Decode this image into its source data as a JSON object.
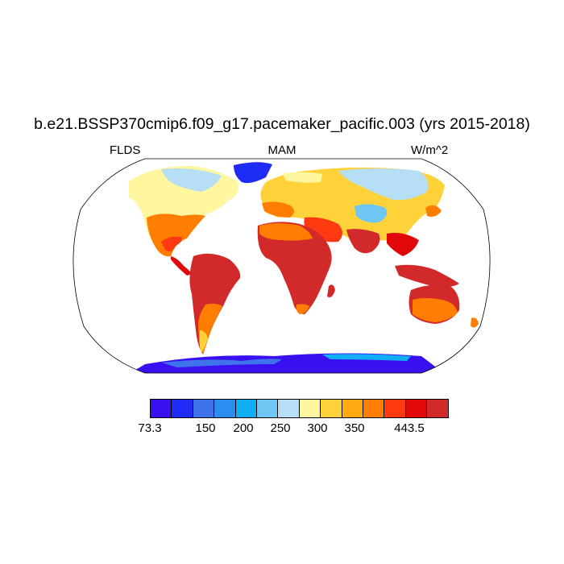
{
  "title": "b.e21.BSSP370cmip6.f09_g17.pacemaker_pacific.003 (yrs 2015-2018)",
  "left_label": "FLDS",
  "center_label": "MAM",
  "right_label": "W/m^2",
  "colorbar": {
    "colors": [
      "#3a10f0",
      "#1e2cf5",
      "#3e73ec",
      "#2d8cf0",
      "#12aef5",
      "#6fc6f2",
      "#b6def4",
      "#fff6a0",
      "#ffd23a",
      "#ffaa10",
      "#ff7d00",
      "#ff3a10",
      "#e00808",
      "#d22a2a"
    ],
    "tick_labels": [
      "73.3",
      "150",
      "200",
      "250",
      "300",
      "350",
      "443.5"
    ]
  }
}
